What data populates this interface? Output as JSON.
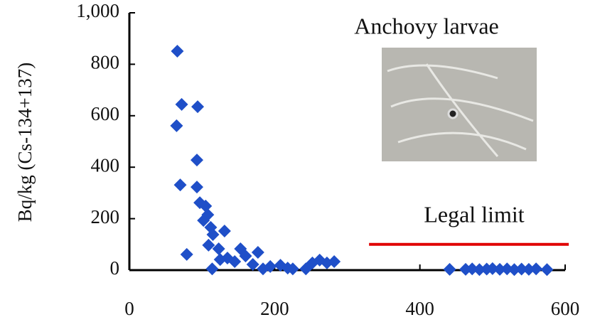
{
  "chart_data": {
    "type": "scatter",
    "y_label": "Bq/kg (Cs-134+137)",
    "annotations": [
      "Anchovy larvae",
      "Legal limit"
    ],
    "reference_line": {
      "value": 100,
      "xrange": [
        330,
        605
      ],
      "color": "#e00000"
    },
    "color": "#1f4fc8",
    "xlim": [
      0,
      600
    ],
    "xticks": [
      0,
      200,
      400,
      600
    ],
    "ylim": [
      0,
      1000
    ],
    "yticks": [
      0,
      200,
      400,
      600,
      800,
      {
        "value": 1000,
        "label": "1,000"
      }
    ],
    "x": [
      66,
      65,
      72,
      94,
      93,
      70,
      93,
      97,
      105,
      102,
      108,
      112,
      109,
      79,
      115,
      131,
      123,
      114,
      125,
      135,
      145,
      153,
      160,
      170,
      177,
      184,
      194,
      208,
      218,
      225,
      243,
      252,
      262,
      272,
      282,
      441,
      463,
      472,
      482,
      492,
      500,
      510,
      520,
      530,
      540,
      550,
      560,
      575
    ],
    "values": [
      851,
      561,
      644,
      635,
      428,
      331,
      323,
      262,
      249,
      193,
      215,
      166,
      97,
      61,
      138,
      152,
      83,
      5,
      41,
      47,
      33,
      83,
      55,
      22,
      69,
      5,
      14,
      19,
      8,
      5,
      5,
      28,
      39,
      28,
      33,
      3,
      3,
      5,
      2,
      4,
      6,
      3,
      5,
      2,
      4,
      3,
      5,
      2
    ]
  }
}
